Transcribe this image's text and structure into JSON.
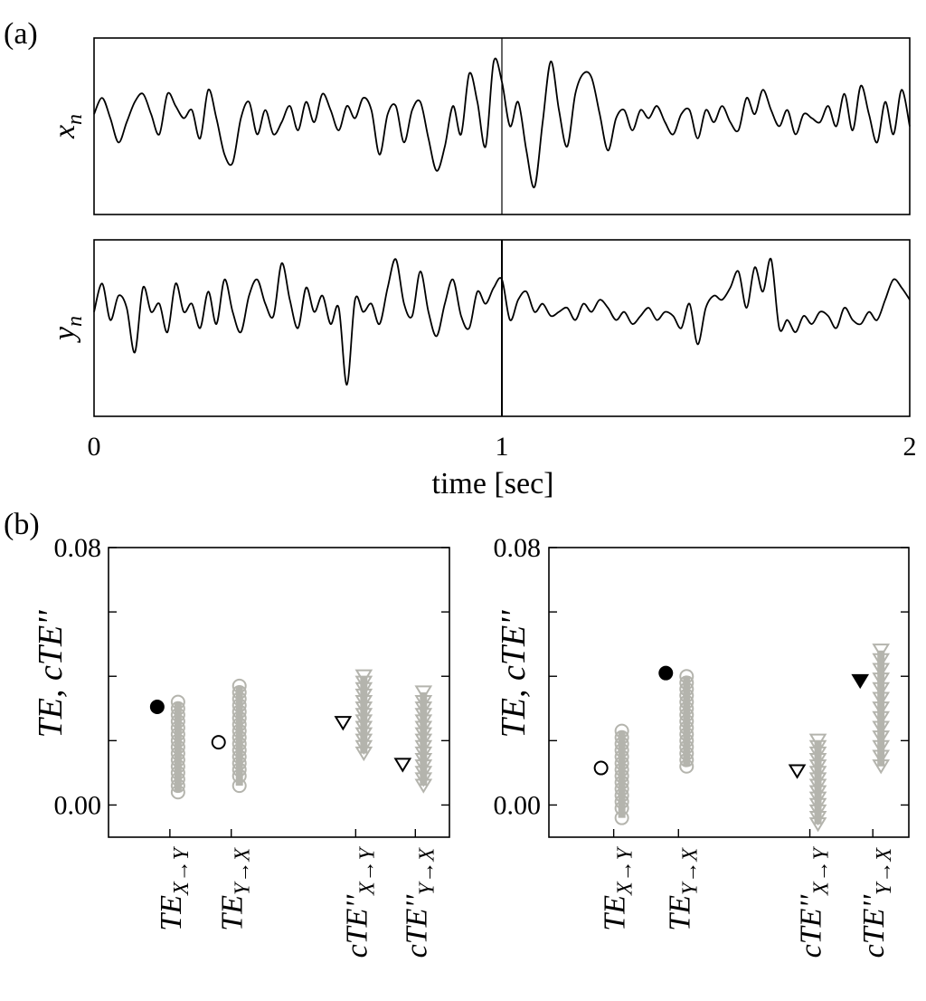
{
  "figure": {
    "panel_a_label": "(a)",
    "panel_b_label": "(b)"
  },
  "chart_data": [
    {
      "type": "line",
      "panel": "a",
      "series_label": "x",
      "series_label_sub": "n",
      "xlabel": "time [sec]",
      "xlim": [
        0,
        2
      ],
      "x_ticks": [
        "0",
        "1",
        "2"
      ],
      "vline_at": 1,
      "x": [
        0.0,
        0.02,
        0.04,
        0.06,
        0.08,
        0.1,
        0.12,
        0.14,
        0.16,
        0.18,
        0.2,
        0.22,
        0.24,
        0.26,
        0.28,
        0.3,
        0.32,
        0.34,
        0.36,
        0.38,
        0.4,
        0.42,
        0.44,
        0.46,
        0.48,
        0.5,
        0.52,
        0.54,
        0.56,
        0.58,
        0.6,
        0.62,
        0.64,
        0.66,
        0.68,
        0.7,
        0.72,
        0.74,
        0.76,
        0.78,
        0.8,
        0.82,
        0.84,
        0.86,
        0.88,
        0.9,
        0.92,
        0.94,
        0.96,
        0.98,
        1.0,
        1.02,
        1.04,
        1.06,
        1.08,
        1.1,
        1.12,
        1.14,
        1.16,
        1.18,
        1.2,
        1.22,
        1.24,
        1.26,
        1.28,
        1.3,
        1.32,
        1.34,
        1.36,
        1.38,
        1.4,
        1.42,
        1.44,
        1.46,
        1.48,
        1.5,
        1.52,
        1.54,
        1.56,
        1.58,
        1.6,
        1.62,
        1.64,
        1.66,
        1.68,
        1.7,
        1.72,
        1.74,
        1.76,
        1.78,
        1.8,
        1.82,
        1.84,
        1.86,
        1.88,
        1.9,
        1.92,
        1.94,
        1.96,
        1.98,
        2.0
      ],
      "values": [
        0.15,
        0.35,
        0.1,
        -0.2,
        0.05,
        0.3,
        0.4,
        0.15,
        -0.1,
        0.4,
        0.25,
        0.1,
        0.2,
        -0.15,
        0.45,
        0.1,
        -0.35,
        -0.45,
        0.1,
        0.3,
        -0.1,
        0.2,
        -0.1,
        0.05,
        0.25,
        -0.05,
        0.3,
        0.05,
        0.4,
        0.2,
        -0.05,
        0.25,
        0.1,
        0.35,
        0.2,
        -0.35,
        0.15,
        0.25,
        -0.2,
        0.2,
        0.3,
        -0.15,
        -0.55,
        -0.25,
        0.25,
        -0.1,
        0.65,
        0.3,
        -0.25,
        0.8,
        0.55,
        0.0,
        0.3,
        -0.3,
        -0.75,
        0.05,
        0.8,
        0.2,
        -0.25,
        0.4,
        0.65,
        0.6,
        0.15,
        -0.3,
        0.1,
        0.2,
        -0.05,
        0.2,
        0.1,
        0.25,
        0.05,
        -0.1,
        0.15,
        0.2,
        -0.15,
        0.2,
        0.05,
        0.25,
        0.05,
        -0.05,
        0.35,
        0.15,
        0.45,
        0.2,
        0.0,
        0.2,
        -0.1,
        0.15,
        0.1,
        0.05,
        0.25,
        0.0,
        0.4,
        -0.05,
        0.5,
        0.15,
        -0.2,
        0.3,
        -0.1,
        0.45,
        0.0
      ]
    },
    {
      "type": "line",
      "panel": "a",
      "series_label": "y",
      "series_label_sub": "n",
      "xlabel": "time [sec]",
      "xlim": [
        0,
        2
      ],
      "x_ticks": [
        "0",
        "1",
        "2"
      ],
      "vline_at": 1,
      "x": [
        0.0,
        0.02,
        0.04,
        0.06,
        0.08,
        0.1,
        0.12,
        0.14,
        0.16,
        0.18,
        0.2,
        0.22,
        0.24,
        0.26,
        0.28,
        0.3,
        0.32,
        0.34,
        0.36,
        0.38,
        0.4,
        0.42,
        0.44,
        0.46,
        0.48,
        0.5,
        0.52,
        0.54,
        0.56,
        0.58,
        0.6,
        0.62,
        0.64,
        0.66,
        0.68,
        0.7,
        0.72,
        0.74,
        0.76,
        0.78,
        0.8,
        0.82,
        0.84,
        0.86,
        0.88,
        0.9,
        0.92,
        0.94,
        0.96,
        0.98,
        1.0,
        1.02,
        1.04,
        1.06,
        1.08,
        1.1,
        1.12,
        1.14,
        1.16,
        1.18,
        1.2,
        1.22,
        1.24,
        1.26,
        1.28,
        1.3,
        1.32,
        1.34,
        1.36,
        1.38,
        1.4,
        1.42,
        1.44,
        1.46,
        1.48,
        1.5,
        1.52,
        1.54,
        1.56,
        1.58,
        1.6,
        1.62,
        1.64,
        1.66,
        1.68,
        1.7,
        1.72,
        1.74,
        1.76,
        1.78,
        1.8,
        1.82,
        1.84,
        1.86,
        1.88,
        1.9,
        1.92,
        1.94,
        1.96,
        1.98,
        2.0
      ],
      "values": [
        0.2,
        0.55,
        0.1,
        0.4,
        0.25,
        -0.3,
        0.5,
        0.2,
        0.3,
        -0.05,
        0.55,
        0.2,
        0.3,
        0.0,
        0.45,
        0.05,
        0.6,
        0.2,
        -0.05,
        0.4,
        0.6,
        0.3,
        0.15,
        0.8,
        0.35,
        0.0,
        0.5,
        0.2,
        0.4,
        0.05,
        0.25,
        -0.7,
        0.35,
        0.2,
        0.3,
        0.05,
        0.5,
        0.85,
        0.3,
        0.15,
        0.7,
        0.2,
        -0.1,
        0.3,
        0.6,
        0.15,
        0.0,
        0.45,
        0.3,
        0.5,
        0.6,
        0.1,
        0.35,
        0.45,
        0.2,
        0.3,
        0.15,
        0.2,
        0.25,
        0.1,
        0.3,
        0.2,
        0.35,
        0.25,
        0.1,
        0.2,
        0.05,
        0.15,
        0.25,
        0.1,
        0.2,
        0.15,
        0.0,
        0.3,
        -0.2,
        0.25,
        0.4,
        0.35,
        0.5,
        0.7,
        0.25,
        0.75,
        0.45,
        0.85,
        0.0,
        0.1,
        -0.05,
        0.15,
        0.05,
        0.2,
        0.15,
        0.0,
        0.25,
        0.1,
        0.05,
        0.2,
        0.1,
        0.35,
        0.6,
        0.5,
        0.35
      ]
    },
    {
      "type": "scatter",
      "panel": "b-left",
      "ylabel": "TE, cTE''",
      "ylim": [
        -0.01,
        0.08
      ],
      "y_ticks": [
        {
          "value": 0.0,
          "label": "0.00"
        },
        {
          "value": 0.02,
          "label": ""
        },
        {
          "value": 0.04,
          "label": ""
        },
        {
          "value": 0.06,
          "label": ""
        },
        {
          "value": 0.08,
          "label": "0.08"
        }
      ],
      "categories": [
        {
          "main": "TE",
          "sub": "X",
          "sub2": "Y",
          "prime": false
        },
        {
          "main": "TE",
          "sub": "Y",
          "sub2": "X",
          "prime": false
        },
        {
          "main": "cTE''",
          "sub": "X",
          "sub2": "Y",
          "prime": true
        },
        {
          "main": "cTE''",
          "sub": "Y",
          "sub2": "X",
          "prime": true
        }
      ],
      "observed": [
        {
          "category": 0,
          "value": 0.0305,
          "marker": "circle",
          "filled": true
        },
        {
          "category": 1,
          "value": 0.0195,
          "marker": "circle",
          "filled": false
        },
        {
          "category": 2,
          "value": 0.0255,
          "marker": "triangle-down",
          "filled": false
        },
        {
          "category": 3,
          "value": 0.0125,
          "marker": "triangle-down",
          "filled": false
        }
      ],
      "surrogate": [
        {
          "category": 0,
          "marker": "circle",
          "values": [
            0.004,
            0.006,
            0.008,
            0.01,
            0.012,
            0.014,
            0.016,
            0.018,
            0.02,
            0.022,
            0.024,
            0.026,
            0.028,
            0.03,
            0.032
          ]
        },
        {
          "category": 1,
          "marker": "circle",
          "values": [
            0.006,
            0.009,
            0.011,
            0.013,
            0.015,
            0.017,
            0.019,
            0.021,
            0.023,
            0.025,
            0.027,
            0.029,
            0.031,
            0.033,
            0.035,
            0.037
          ]
        },
        {
          "category": 2,
          "marker": "triangle-down",
          "values": [
            0.016,
            0.018,
            0.02,
            0.022,
            0.024,
            0.026,
            0.028,
            0.03,
            0.032,
            0.034,
            0.036,
            0.038,
            0.04
          ]
        },
        {
          "category": 3,
          "marker": "triangle-down",
          "values": [
            0.006,
            0.008,
            0.01,
            0.012,
            0.014,
            0.016,
            0.018,
            0.02,
            0.022,
            0.024,
            0.026,
            0.028,
            0.03,
            0.032,
            0.035
          ]
        }
      ]
    },
    {
      "type": "scatter",
      "panel": "b-right",
      "ylabel": "TE, cTE''",
      "ylim": [
        -0.01,
        0.08
      ],
      "y_ticks": [
        {
          "value": 0.0,
          "label": "0.00"
        },
        {
          "value": 0.02,
          "label": ""
        },
        {
          "value": 0.04,
          "label": ""
        },
        {
          "value": 0.06,
          "label": ""
        },
        {
          "value": 0.08,
          "label": "0.08"
        }
      ],
      "categories": [
        {
          "main": "TE",
          "sub": "X",
          "sub2": "Y",
          "prime": false
        },
        {
          "main": "TE",
          "sub": "Y",
          "sub2": "X",
          "prime": false
        },
        {
          "main": "cTE''",
          "sub": "X",
          "sub2": "Y",
          "prime": true
        },
        {
          "main": "cTE''",
          "sub": "Y",
          "sub2": "X",
          "prime": true
        }
      ],
      "observed": [
        {
          "category": 0,
          "value": 0.0115,
          "marker": "circle",
          "filled": false
        },
        {
          "category": 1,
          "value": 0.041,
          "marker": "circle",
          "filled": true
        },
        {
          "category": 2,
          "value": 0.0105,
          "marker": "triangle-down",
          "filled": false
        },
        {
          "category": 3,
          "value": 0.0385,
          "marker": "triangle-down",
          "filled": true
        }
      ],
      "surrogate": [
        {
          "category": 0,
          "marker": "circle",
          "values": [
            -0.004,
            -0.001,
            0.001,
            0.003,
            0.005,
            0.007,
            0.009,
            0.011,
            0.013,
            0.015,
            0.017,
            0.019,
            0.021,
            0.023
          ]
        },
        {
          "category": 1,
          "marker": "circle",
          "values": [
            0.012,
            0.014,
            0.016,
            0.018,
            0.02,
            0.022,
            0.024,
            0.026,
            0.028,
            0.03,
            0.032,
            0.034,
            0.036,
            0.038,
            0.04
          ]
        },
        {
          "category": 2,
          "marker": "triangle-down",
          "values": [
            -0.006,
            -0.004,
            -0.002,
            0.0,
            0.002,
            0.004,
            0.006,
            0.008,
            0.01,
            0.012,
            0.014,
            0.016,
            0.018,
            0.02
          ]
        },
        {
          "category": 3,
          "marker": "triangle-down",
          "values": [
            0.012,
            0.015,
            0.018,
            0.021,
            0.024,
            0.027,
            0.03,
            0.033,
            0.036,
            0.039,
            0.042,
            0.045,
            0.048
          ]
        }
      ]
    }
  ]
}
